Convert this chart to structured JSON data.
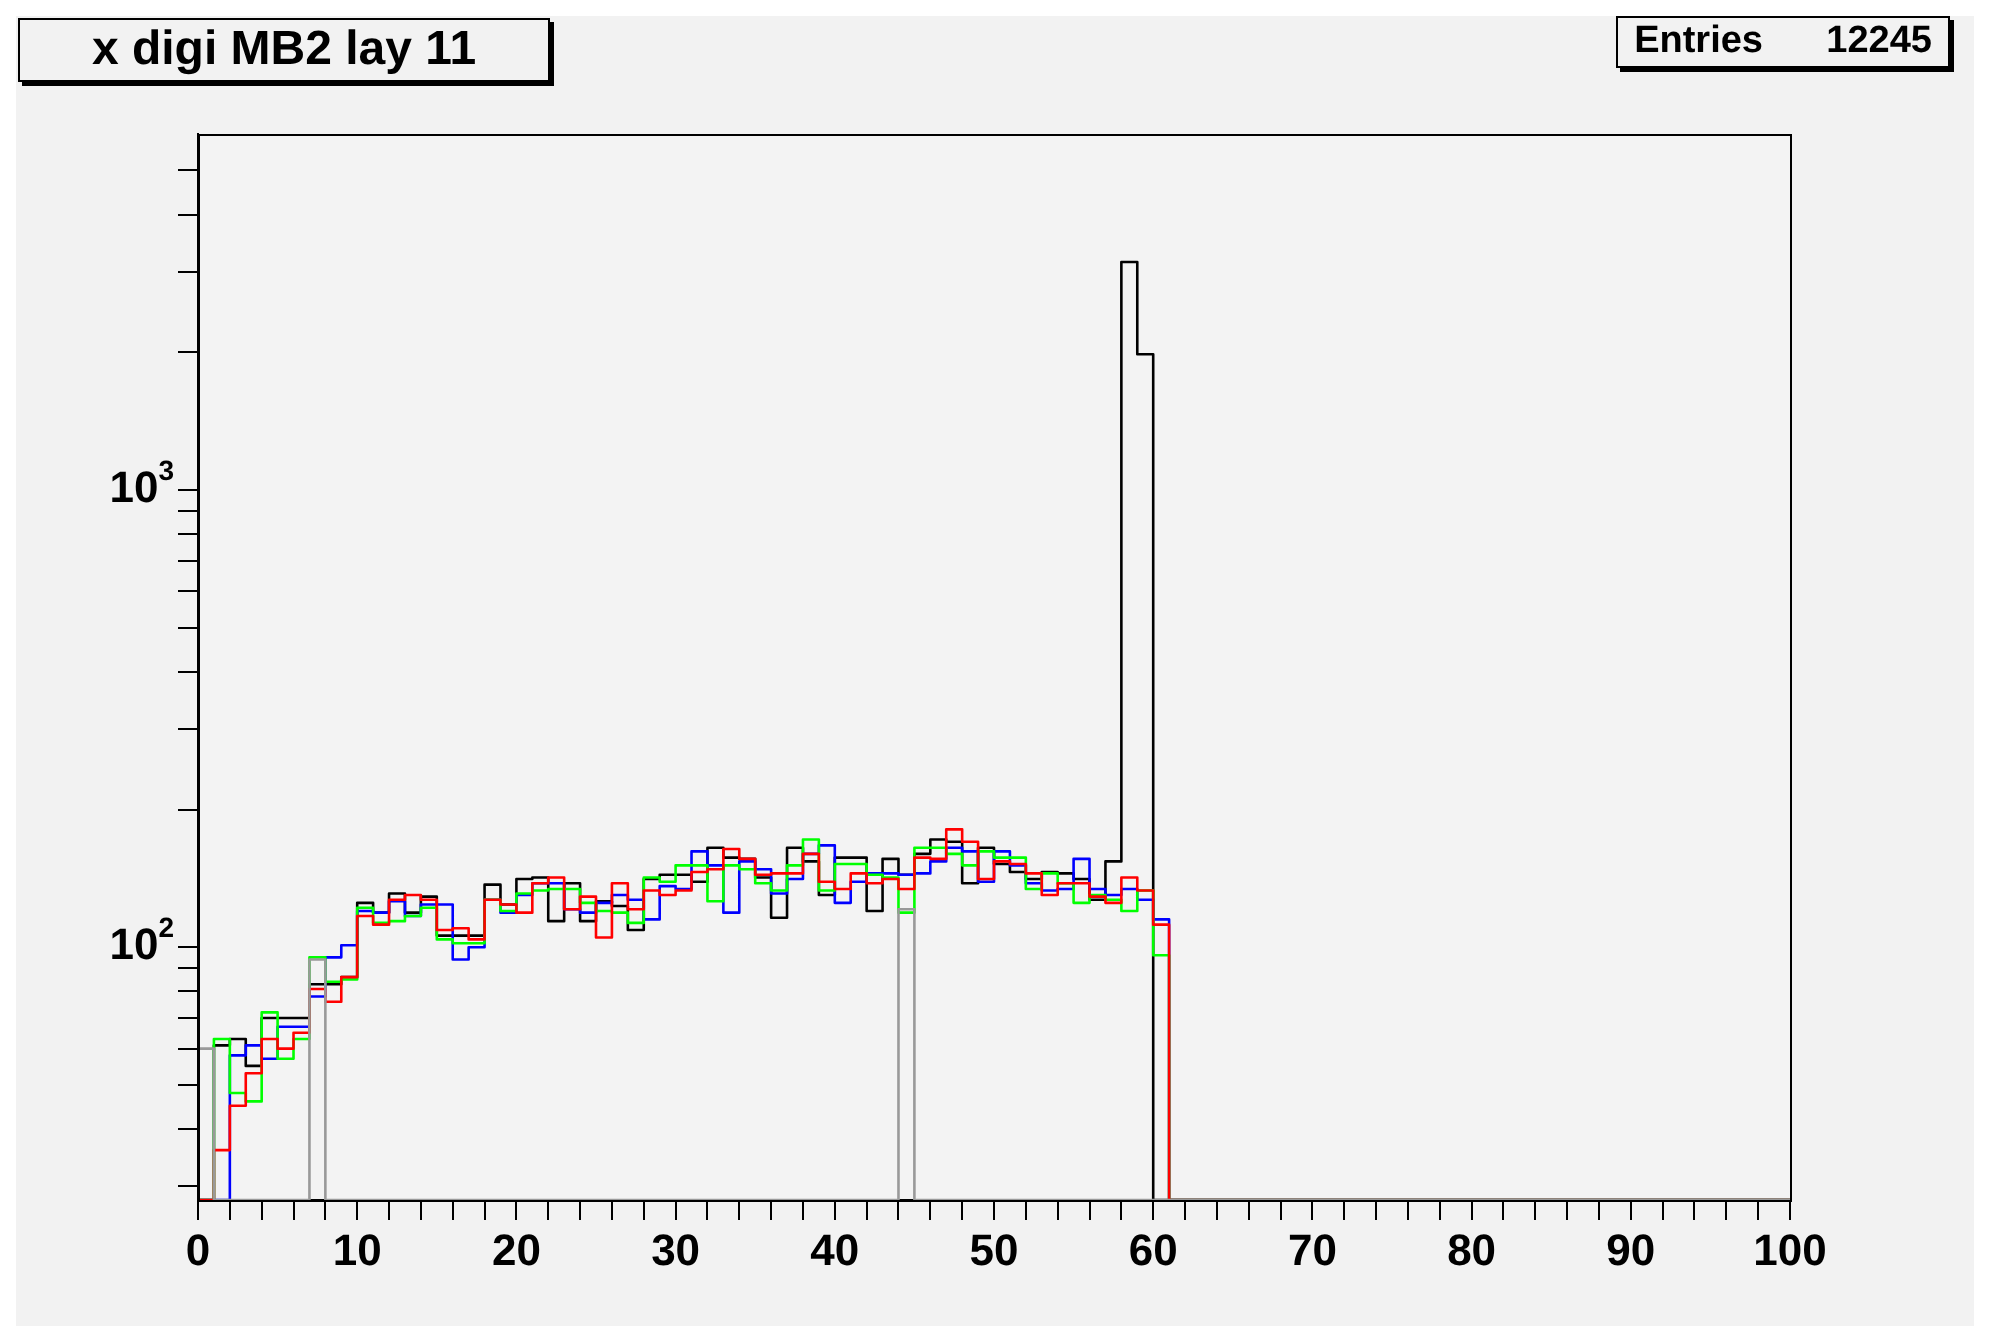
{
  "chart_data": {
    "type": "histogram",
    "title": "x digi MB2 lay 11",
    "annotations": [
      "Entries      12245"
    ],
    "bins": [
      0,
      1,
      2,
      3,
      4,
      5,
      6,
      7,
      8,
      9,
      10,
      11,
      12,
      13,
      14,
      15,
      16,
      17,
      18,
      19,
      20,
      21,
      22,
      23,
      24,
      25,
      26,
      27,
      28,
      29,
      30,
      31,
      32,
      33,
      34,
      35,
      36,
      37,
      38,
      39,
      40,
      41,
      42,
      43,
      44,
      45,
      46,
      47,
      48,
      49,
      50,
      51,
      52,
      53,
      54,
      55,
      56,
      57,
      58,
      59,
      60,
      61,
      62,
      63,
      64,
      65,
      66,
      67,
      68,
      69,
      70,
      71,
      72,
      73,
      74,
      75,
      76,
      77,
      78,
      79,
      80,
      81,
      82,
      83,
      84,
      85,
      86,
      87,
      88,
      89,
      90,
      91,
      92,
      93,
      94,
      95,
      96,
      97,
      98,
      99,
      100
    ],
    "series": [
      {
        "color": "#999999",
        "values": [
          60,
          null,
          null,
          null,
          null,
          null,
          null,
          94,
          null,
          null,
          null,
          null,
          null,
          null,
          null,
          null,
          null,
          null,
          null,
          null,
          null,
          null,
          null,
          null,
          null,
          null,
          null,
          null,
          null,
          null,
          null,
          null,
          null,
          null,
          null,
          null,
          null,
          null,
          null,
          null,
          null,
          null,
          null,
          null,
          121,
          null,
          null,
          null,
          null,
          null,
          null,
          null,
          null,
          null,
          null,
          null,
          null,
          null,
          null,
          null,
          null,
          null,
          null,
          null,
          null,
          null,
          null,
          null,
          null,
          null,
          null,
          null,
          null,
          null,
          null,
          null,
          null,
          null,
          null,
          null,
          null,
          null,
          null,
          null,
          null,
          null,
          null,
          null,
          null,
          null,
          null,
          null,
          null,
          null,
          null,
          null,
          null,
          null,
          null,
          null
        ]
      },
      {
        "color": "#ff0000",
        "values": [
          null,
          36,
          45,
          53,
          63,
          60,
          65,
          81,
          76,
          86,
          117,
          112,
          127,
          130,
          127,
          109,
          110,
          104,
          127,
          124,
          119,
          138,
          142,
          121,
          129,
          105,
          138,
          121,
          133,
          130,
          133,
          146,
          148,
          164,
          156,
          144,
          145,
          145,
          160,
          139,
          134,
          145,
          138,
          141,
          134,
          157,
          156,
          181,
          170,
          141,
          154,
          152,
          145,
          130,
          138,
          138,
          129,
          125,
          142,
          133,
          112,
          null,
          null,
          null,
          null,
          null,
          null,
          null,
          null,
          null,
          null,
          null,
          null,
          null,
          null,
          null,
          null,
          null,
          null,
          null,
          null,
          null,
          null,
          null,
          null,
          null,
          null,
          null,
          null,
          null,
          null,
          null,
          null,
          null,
          null,
          null,
          null,
          null,
          null,
          null
        ]
      },
      {
        "color": "#00ff00",
        "values": [
          null,
          63,
          48,
          46,
          72,
          57,
          63,
          95,
          84,
          85,
          122,
          113,
          114,
          117,
          122,
          104,
          102,
          102,
          127,
          120,
          131,
          133,
          134,
          134,
          125,
          120,
          119,
          113,
          142,
          139,
          151,
          151,
          126,
          151,
          148,
          138,
          133,
          151,
          172,
          133,
          152,
          152,
          144,
          142,
          119,
          165,
          165,
          160,
          151,
          162,
          157,
          157,
          134,
          145,
          138,
          125,
          130,
          127,
          120,
          133,
          96,
          null,
          null,
          null,
          null,
          null,
          null,
          null,
          null,
          null,
          null,
          null,
          null,
          null,
          null,
          null,
          null,
          null,
          null,
          null,
          null,
          null,
          null,
          null,
          null,
          null,
          null,
          null,
          null,
          null,
          null,
          null,
          null,
          null,
          null,
          null,
          null,
          null,
          null,
          null
        ]
      },
      {
        "color": "#0000ff",
        "values": [
          null,
          null,
          58,
          61,
          57,
          67,
          67,
          78,
          95,
          101,
          120,
          119,
          126,
          117,
          124,
          124,
          94,
          100,
          127,
          119,
          130,
          138,
          138,
          121,
          119,
          125,
          130,
          127,
          115,
          136,
          134,
          162,
          151,
          119,
          154,
          148,
          131,
          141,
          160,
          167,
          125,
          139,
          145,
          145,
          144,
          145,
          154,
          165,
          162,
          139,
          162,
          151,
          138,
          133,
          134,
          156,
          134,
          130,
          134,
          127,
          115,
          null,
          null,
          null,
          null,
          null,
          null,
          null,
          null,
          null,
          null,
          null,
          null,
          null,
          null,
          null,
          null,
          null,
          null,
          null,
          null,
          null,
          null,
          null,
          null,
          null,
          null,
          null,
          null,
          null,
          null,
          null,
          null,
          null,
          null,
          null,
          null,
          null,
          null,
          null
        ]
      },
      {
        "color": "#000000",
        "values": [
          null,
          61,
          63,
          55,
          70,
          70,
          70,
          83,
          83,
          86,
          125,
          119,
          131,
          119,
          129,
          106,
          106,
          106,
          137,
          124,
          141,
          142,
          114,
          138,
          114,
          126,
          123,
          109,
          141,
          144,
          144,
          139,
          165,
          157,
          156,
          142,
          116,
          165,
          154,
          130,
          157,
          157,
          120,
          156,
          144,
          160,
          172,
          170,
          138,
          165,
          152,
          146,
          141,
          146,
          145,
          141,
          127,
          154,
          3150,
          1980,
          null,
          null,
          null,
          null,
          null,
          null,
          null,
          null,
          null,
          null,
          null,
          null,
          null,
          null,
          null,
          null,
          null,
          null,
          null,
          null,
          null,
          null,
          null,
          null,
          null,
          null,
          null,
          null,
          null,
          null,
          null,
          null,
          null,
          null,
          null,
          null,
          null,
          null,
          null,
          null
        ]
      }
    ],
    "xlim": [
      0,
      100
    ],
    "xticks": [
      0,
      {
        "value": 2,
        "label": null
      },
      {
        "value": 4,
        "label": null
      },
      {
        "value": 6,
        "label": null
      },
      {
        "value": 8,
        "label": null
      },
      10,
      {
        "value": 12,
        "label": null
      },
      {
        "value": 14,
        "label": null
      },
      {
        "value": 16,
        "label": null
      },
      {
        "value": 18,
        "label": null
      },
      20,
      {
        "value": 22,
        "label": null
      },
      {
        "value": 24,
        "label": null
      },
      {
        "value": 26,
        "label": null
      },
      {
        "value": 28,
        "label": null
      },
      30,
      {
        "value": 32,
        "label": null
      },
      {
        "value": 34,
        "label": null
      },
      {
        "value": 36,
        "label": null
      },
      {
        "value": 38,
        "label": null
      },
      40,
      {
        "value": 42,
        "label": null
      },
      {
        "value": 44,
        "label": null
      },
      {
        "value": 46,
        "label": null
      },
      {
        "value": 48,
        "label": null
      },
      50,
      {
        "value": 52,
        "label": null
      },
      {
        "value": 54,
        "label": null
      },
      {
        "value": 56,
        "label": null
      },
      {
        "value": 58,
        "label": null
      },
      60,
      {
        "value": 62,
        "label": null
      },
      {
        "value": 64,
        "label": null
      },
      {
        "value": 66,
        "label": null
      },
      {
        "value": 68,
        "label": null
      },
      70,
      {
        "value": 72,
        "label": null
      },
      {
        "value": 74,
        "label": null
      },
      {
        "value": 76,
        "label": null
      },
      {
        "value": 78,
        "label": null
      },
      80,
      {
        "value": 82,
        "label": null
      },
      {
        "value": 84,
        "label": null
      },
      {
        "value": 86,
        "label": null
      },
      {
        "value": 88,
        "label": null
      },
      90,
      {
        "value": 92,
        "label": null
      },
      {
        "value": 94,
        "label": null
      },
      {
        "value": 96,
        "label": null
      },
      {
        "value": 98,
        "label": null
      },
      100
    ],
    "ylim": [
      28,
      6000
    ],
    "yticks": [
      {
        "value": 30,
        "label": null
      },
      {
        "value": 40,
        "label": null
      },
      {
        "value": 50,
        "label": null
      },
      {
        "value": 60,
        "label": null
      },
      {
        "value": 70,
        "label": null
      },
      {
        "value": 80,
        "label": null
      },
      {
        "value": 90,
        "label": null
      },
      {
        "value": 100,
        "label": "10$^{2}$"
      },
      {
        "value": 200,
        "label": null
      },
      {
        "value": 300,
        "label": null
      },
      {
        "value": 400,
        "label": null
      },
      {
        "value": 500,
        "label": null
      },
      {
        "value": 600,
        "label": null
      },
      {
        "value": 700,
        "label": null
      },
      {
        "value": 800,
        "label": null
      },
      {
        "value": 900,
        "label": null
      },
      {
        "value": 1000,
        "label": "10$^{3}$"
      },
      {
        "value": 2000,
        "label": null
      },
      {
        "value": 3000,
        "label": null
      },
      {
        "value": 4000,
        "label": null
      },
      {
        "value": 5000,
        "label": null
      }
    ],
    "log": true,
    "grid": false,
    "legend": false
  }
}
